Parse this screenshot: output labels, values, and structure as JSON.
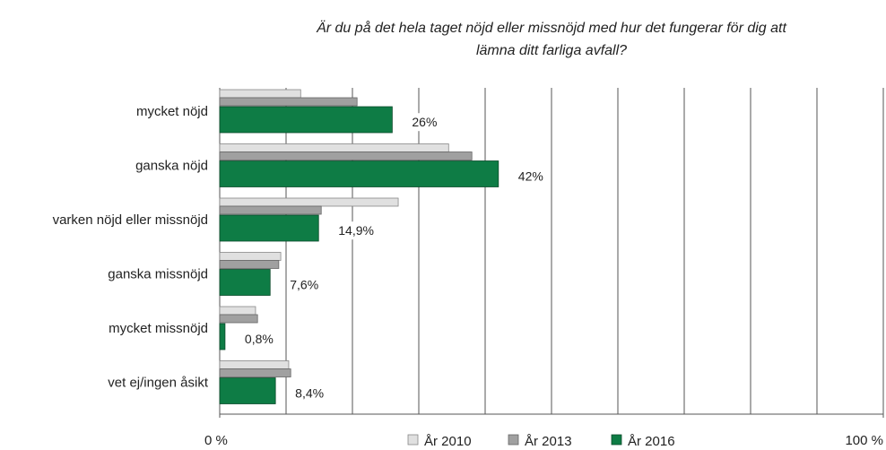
{
  "chart_data": {
    "type": "hbar",
    "title_lines": [
      "Är du på det hela taget nöjd eller missnöjd med hur det fungerar för dig att",
      "lämna ditt farliga avfall?"
    ],
    "categories": [
      "mycket nöjd",
      "ganska nöjd",
      "varken nöjd eller missnöjd",
      "ganska missnöjd",
      "mycket missnöjd",
      "vet ej/ingen åsikt"
    ],
    "series": [
      {
        "name": "År 2010",
        "color": "#e0e0e0",
        "values": [
          12.2,
          34.5,
          26.9,
          9.2,
          5.4,
          10.4
        ]
      },
      {
        "name": "År 2013",
        "color": "#a0a0a0",
        "values": [
          20.7,
          38,
          15.3,
          8.9,
          5.7,
          10.7
        ]
      },
      {
        "name": "År 2016",
        "color": "#0e7c45",
        "values": [
          26,
          42,
          14.9,
          7.6,
          0.8,
          8.4
        ],
        "value_labels": [
          "26%",
          "42%",
          "14,9%",
          "7,6%",
          "0,8%",
          "8,4%"
        ]
      }
    ],
    "xlim": [
      0,
      100
    ],
    "xticks": [
      {
        "value": 0,
        "label": "0 %"
      },
      {
        "value": 100,
        "label": "100 %"
      }
    ],
    "grid_lines": [
      0,
      10,
      20,
      30,
      40,
      50,
      60,
      70,
      80,
      90,
      100
    ],
    "grid": true
  }
}
